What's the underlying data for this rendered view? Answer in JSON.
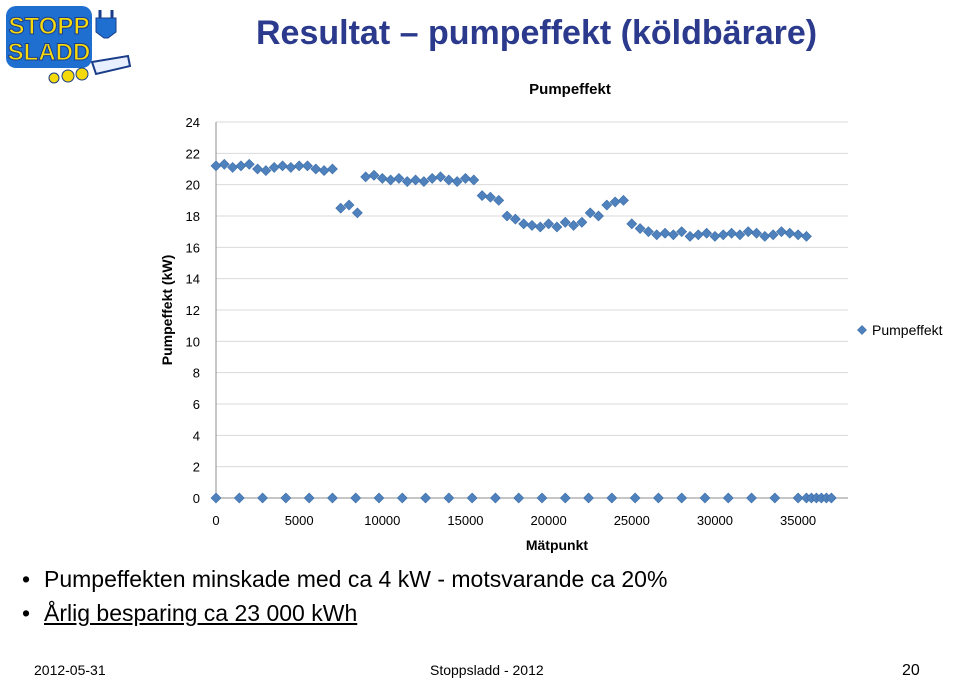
{
  "slide": {
    "title": "Resultat – pumpeffekt (köldbärare)",
    "bullets": [
      "Pumpeffekten minskade med ca 4 kW - motsvarande ca 20%",
      "Årlig besparing ca 23 000 kWh"
    ],
    "footer": {
      "date": "2012-05-31",
      "center": "Stoppsladd - 2012",
      "page": "20"
    },
    "logo": {
      "line1": "STOPP",
      "line2": "SLADD"
    }
  },
  "colors": {
    "title": "#2b3a8c",
    "marker": "#4f81bd",
    "grid": "#d9d9d9",
    "logo_bg": "#1f6fd1",
    "logo_text": "#f5d90a"
  },
  "chart_data": {
    "type": "scatter",
    "title": "Pumpeffekt",
    "xlabel": "Mätpunkt",
    "ylabel": "Pumpeffekt (kW)",
    "xlim": [
      0,
      38000
    ],
    "ylim": [
      0,
      24
    ],
    "xticks": [
      0,
      5000,
      10000,
      15000,
      20000,
      25000,
      30000,
      35000
    ],
    "yticks": [
      0,
      2,
      4,
      6,
      8,
      10,
      12,
      14,
      16,
      18,
      20,
      22,
      24
    ],
    "grid": true,
    "legend": {
      "position": "right",
      "entries": [
        "Pumpeffekt"
      ]
    },
    "series": [
      {
        "name": "Pumpeffekt",
        "marker": "diamond",
        "x": [
          0,
          500,
          1000,
          1500,
          2000,
          2500,
          3000,
          3500,
          4000,
          4500,
          5000,
          5500,
          6000,
          6500,
          7000,
          7500,
          8000,
          8500,
          9000,
          9500,
          10000,
          10500,
          11000,
          11500,
          12000,
          12500,
          13000,
          13500,
          14000,
          14500,
          15000,
          15500,
          16000,
          16500,
          17000,
          17500,
          18000,
          18500,
          19000,
          19500,
          20000,
          20500,
          21000,
          21500,
          22000,
          22500,
          23000,
          23500,
          24000,
          24500,
          25000,
          25500,
          26000,
          26500,
          27000,
          27500,
          28000,
          28500,
          29000,
          29500,
          30000,
          30500,
          31000,
          31500,
          32000,
          32500,
          33000,
          33500,
          34000,
          34500,
          35000,
          35500,
          0,
          1400,
          2800,
          4200,
          5600,
          7000,
          8400,
          9800,
          11200,
          12600,
          14000,
          15400,
          16800,
          18200,
          19600,
          21000,
          22400,
          23800,
          25200,
          26600,
          28000,
          29400,
          30800,
          32200,
          33600,
          35000,
          35500,
          35800,
          36100,
          36400,
          36700,
          37000
        ],
        "y": [
          21.2,
          21.3,
          21.1,
          21.2,
          21.3,
          21.0,
          20.9,
          21.1,
          21.2,
          21.1,
          21.2,
          21.2,
          21.0,
          20.9,
          21.0,
          18.5,
          18.7,
          18.2,
          20.5,
          20.6,
          20.4,
          20.3,
          20.4,
          20.2,
          20.3,
          20.2,
          20.4,
          20.5,
          20.3,
          20.2,
          20.4,
          20.3,
          19.3,
          19.2,
          19.0,
          18.0,
          17.8,
          17.5,
          17.4,
          17.3,
          17.5,
          17.3,
          17.6,
          17.4,
          17.6,
          18.2,
          18.0,
          18.7,
          18.9,
          19.0,
          17.5,
          17.2,
          17.0,
          16.8,
          16.9,
          16.8,
          17.0,
          16.7,
          16.8,
          16.9,
          16.7,
          16.8,
          16.9,
          16.8,
          17.0,
          16.9,
          16.7,
          16.8,
          17.0,
          16.9,
          16.8,
          16.7,
          0,
          0,
          0,
          0,
          0,
          0,
          0,
          0,
          0,
          0,
          0,
          0,
          0,
          0,
          0,
          0,
          0,
          0,
          0,
          0,
          0,
          0,
          0,
          0,
          0,
          0,
          0,
          0,
          0,
          0,
          0,
          0
        ]
      }
    ]
  }
}
